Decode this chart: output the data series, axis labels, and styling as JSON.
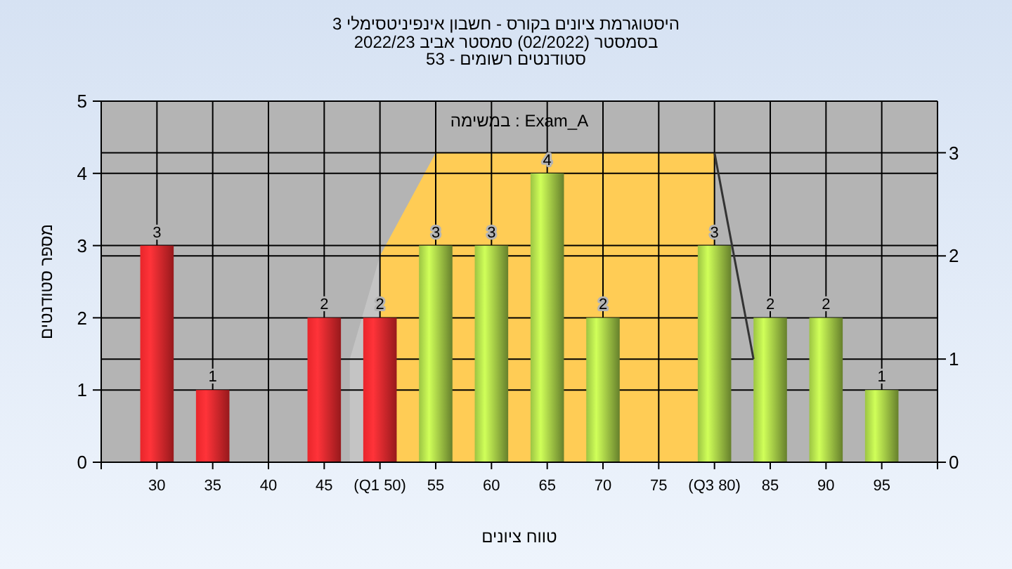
{
  "chart_data": {
    "type": "bar",
    "title": "היסטוגרמת ציונים בקורס - חשבון אינפיניטסימלי 3",
    "subtitle": "בסמסטר (02/2022) סמסטר אביב 2022/23\nסטודנטים רשומים - 53",
    "xlabel": "טווח ציונים",
    "ylabel": "מספר סטודנטים",
    "annotations": [
      "במשימה : Exam_A"
    ],
    "x": [
      30,
      35,
      40,
      45,
      50,
      55,
      60,
      65,
      70,
      75,
      80,
      85,
      90,
      95
    ],
    "series": [
      {
        "values": [
          3,
          1,
          0,
          2,
          2,
          3,
          3,
          4,
          2,
          0,
          3,
          2,
          2,
          1
        ],
        "colors": [
          "#e8262b",
          "#e8262b",
          "#e8262b",
          "#e8262b",
          "#e8262b",
          "#9cc443",
          "#9cc443",
          "#9cc443",
          "#9cc443",
          "#9cc443",
          "#9cc443",
          "#9cc443",
          "#9cc443",
          "#9cc443"
        ],
        "value_labels": [
          "3",
          "1",
          null,
          "2",
          "2",
          "3",
          "3",
          "4",
          "2",
          null,
          "3",
          "2",
          "2",
          "1"
        ]
      },
      {
        "type": "area",
        "axis": "y2",
        "color": "#c4c4c4",
        "x": [
          47.3,
          50
        ],
        "values": [
          1,
          2
        ]
      },
      {
        "type": "area",
        "axis": "y2",
        "color": "#ffcc55",
        "x": [
          50,
          55,
          80
        ],
        "values": [
          2,
          3,
          3
        ]
      },
      {
        "type": "line",
        "axis": "y2",
        "color": "#333333",
        "x": [
          80,
          83.5
        ],
        "values": [
          3,
          1
        ]
      }
    ],
    "xlim": [
      25,
      100
    ],
    "xticks": [
      {
        "value": 25,
        "label": null
      },
      30,
      35,
      40,
      45,
      {
        "value": 50,
        "label": "(Q1 50)"
      },
      55,
      60,
      65,
      70,
      75,
      {
        "value": 80,
        "label": "(Q3 80)"
      },
      85,
      90,
      95,
      {
        "value": 100,
        "label": null
      }
    ],
    "ylim": [
      0,
      5
    ],
    "yticks": [
      0,
      1,
      2,
      3,
      4,
      5
    ],
    "y2lim": [
      0,
      3.5
    ],
    "y2ticks": [
      0,
      1,
      2,
      3
    ],
    "grid": true
  }
}
